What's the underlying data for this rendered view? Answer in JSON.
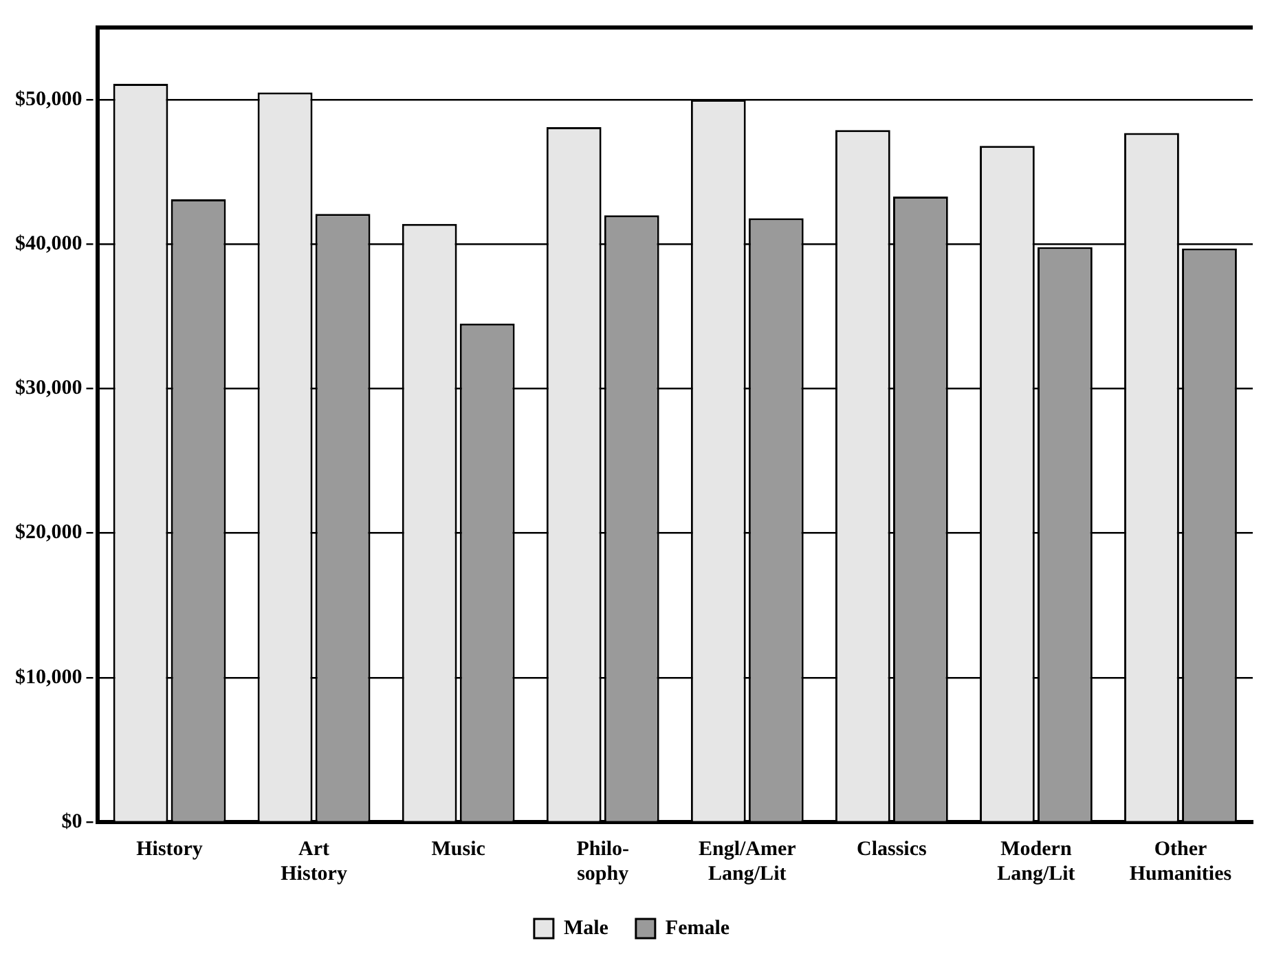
{
  "chart_data": {
    "type": "bar",
    "categories": [
      "History",
      "Art\nHistory",
      "Music",
      "Philo-\nsophy",
      "Engl/Amer\nLang/Lit",
      "Classics",
      "Modern\nLang/Lit",
      "Other\nHumanities"
    ],
    "series": [
      {
        "name": "Male",
        "color": "#e6e6e6",
        "values": [
          51100,
          50500,
          41400,
          48100,
          50000,
          47900,
          46800,
          47700
        ]
      },
      {
        "name": "Female",
        "color": "#9a9a9a",
        "values": [
          43100,
          42100,
          34500,
          42000,
          41800,
          43300,
          39800,
          39700
        ]
      }
    ],
    "ylim": [
      0,
      55000
    ],
    "yticks": [
      {
        "value": 0,
        "label": "$0"
      },
      {
        "value": 10000,
        "label": "$10,000"
      },
      {
        "value": 20000,
        "label": "$20,000"
      },
      {
        "value": 30000,
        "label": "$30,000"
      },
      {
        "value": 40000,
        "label": "$40,000"
      },
      {
        "value": 50000,
        "label": "$50,000"
      }
    ],
    "grid": "y",
    "line_style": "dashed",
    "legend": "bottom"
  }
}
